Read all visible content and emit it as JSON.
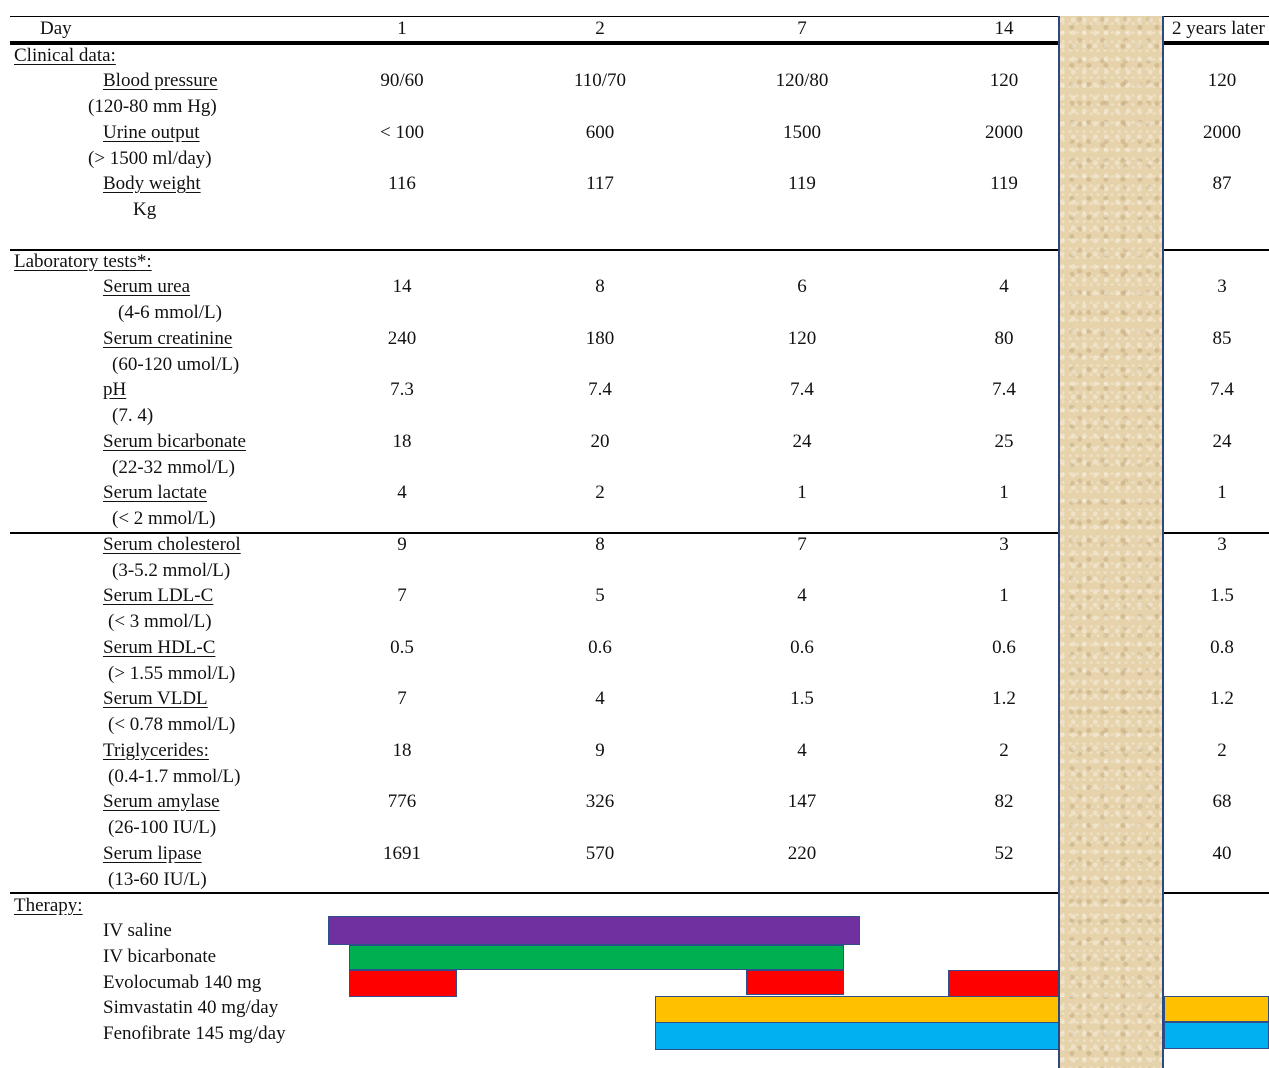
{
  "header": {
    "day_label": "Day",
    "columns": [
      "1",
      "2",
      "7",
      "14",
      "2 years later"
    ]
  },
  "sections": {
    "clinical": "Clinical data:",
    "laboratory": "Laboratory tests*:",
    "therapy": "Therapy:"
  },
  "rows": [
    {
      "label": "Blood pressure",
      "range": "(120-80 mm Hg)",
      "values": [
        "90/60",
        "110/70",
        "120/80",
        "120",
        "120"
      ]
    },
    {
      "label": "Urine output",
      "range": "(> 1500 ml/day)",
      "values": [
        "< 100",
        "600",
        "1500",
        "2000",
        "2000"
      ]
    },
    {
      "label": "Body weight",
      "range": "Kg",
      "values": [
        "116",
        "117",
        "119",
        "119",
        "87"
      ]
    },
    {
      "label": "Serum urea",
      "range": "(4-6  mmol/L)",
      "values": [
        "14",
        "8",
        "6",
        "4",
        "3"
      ]
    },
    {
      "label": "Serum creatinine",
      "range": "(60-120 umol/L)",
      "values": [
        "240",
        "180",
        "120",
        "80",
        "85"
      ]
    },
    {
      "label": "pH",
      "range": "(7. 4)",
      "values": [
        "7.3",
        "7.4",
        "7.4",
        "7.4",
        "7.4"
      ]
    },
    {
      "label": "Serum bicarbonate",
      "range": "(22-32  mmol/L)",
      "values": [
        "18",
        "20",
        "24",
        "25",
        "24"
      ]
    },
    {
      "label": "Serum lactate",
      "range": "(< 2 mmol/L)",
      "values": [
        "4",
        "2",
        "1",
        "1",
        "1"
      ]
    },
    {
      "label": "Serum cholesterol",
      "range": "(3-5.2 mmol/L)",
      "values": [
        "9",
        "8",
        "7",
        "3",
        "3"
      ]
    },
    {
      "label": "Serum LDL-C",
      "range": "(< 3 mmol/L)",
      "values": [
        "7",
        "5",
        "4",
        "1",
        "1.5"
      ]
    },
    {
      "label": "Serum HDL-C",
      "range": "(> 1.55 mmol/L)",
      "values": [
        "0.5",
        "0.6",
        "0.6",
        "0.6",
        "0.8"
      ]
    },
    {
      "label": "Serum VLDL",
      "range": "(< 0.78 mmol/L)",
      "values": [
        "7",
        "4",
        "1.5",
        "1.2",
        "1.2"
      ]
    },
    {
      "label": "Triglycerides:",
      "range": "(0.4-1.7 mmol/L)",
      "values": [
        "18",
        "9",
        "4",
        "2",
        "2"
      ]
    },
    {
      "label": "Serum amylase",
      "range": "(26-100 IU/L)",
      "values": [
        "776",
        "326",
        "147",
        "82",
        "68"
      ]
    },
    {
      "label": "Serum lipase",
      "range": "(13-60 IU/L)",
      "values": [
        "1691",
        "570",
        "220",
        "52",
        "40"
      ]
    }
  ],
  "therapy": [
    {
      "name": "IV saline",
      "color": "#7030a0"
    },
    {
      "name": "IV bicarbonate",
      "color": "#00b050"
    },
    {
      "name": "Evolocumab 140 mg",
      "color": "#ff0000"
    },
    {
      "name": "Simvastatin 40 mg/day",
      "color": "#ffc000"
    },
    {
      "name": "Fenofibrate 145 mg/day",
      "color": "#00b0f0"
    }
  ]
}
